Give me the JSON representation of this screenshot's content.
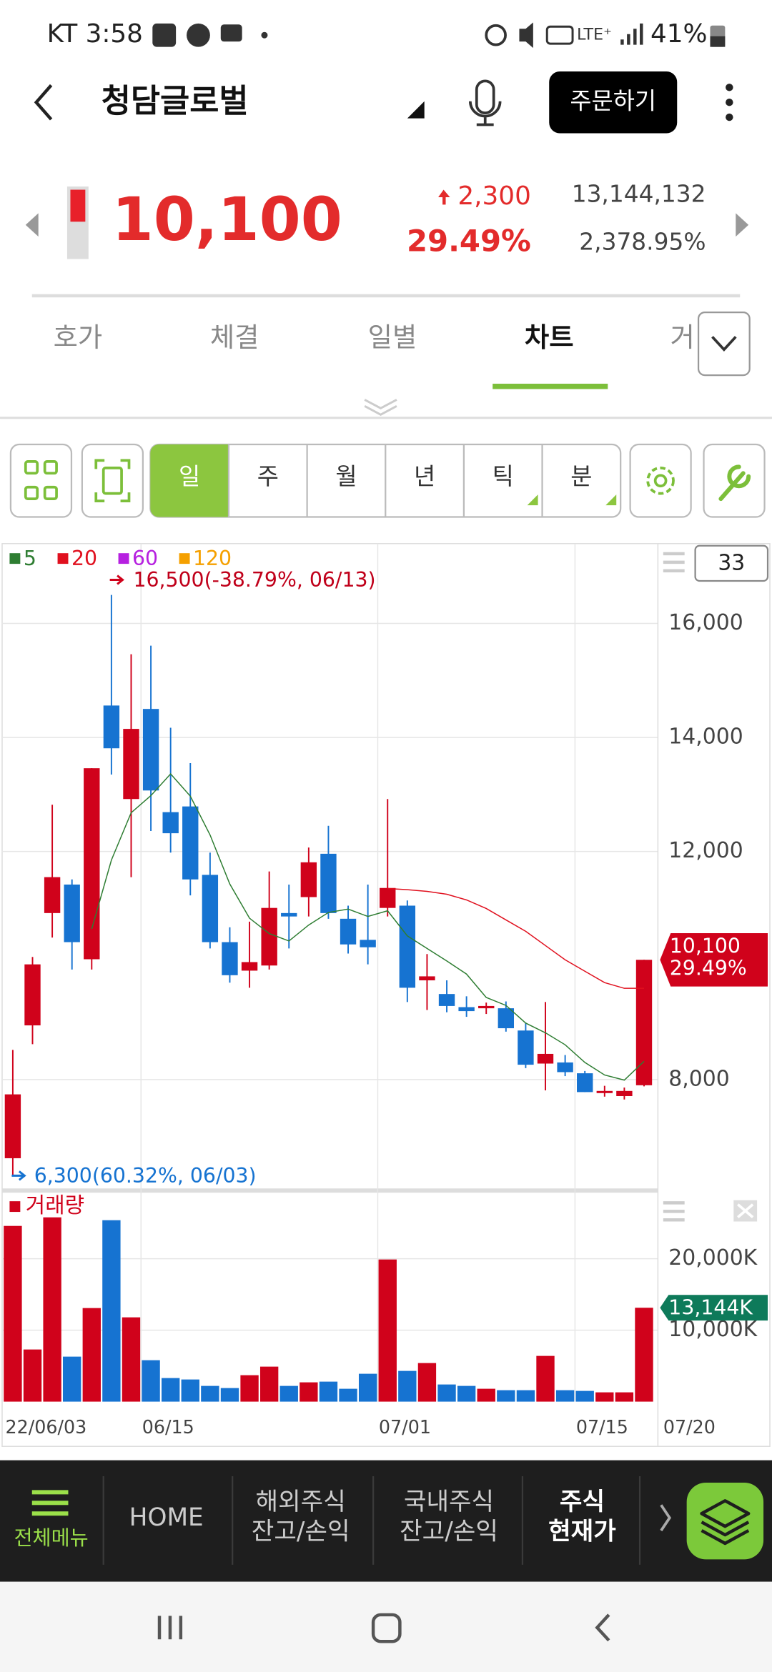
{
  "status_bar": {
    "carrier_time": "KT 3:58",
    "battery": "41%"
  },
  "header": {
    "title": "청담글로벌",
    "order_button": "주문하기"
  },
  "quote": {
    "price": "10,100",
    "change": "2,300",
    "change_rate": "29.49%",
    "volume": "13,144,132",
    "volume_rate": "2,378.95%"
  },
  "tabs": [
    "호가",
    "체결",
    "일별",
    "차트",
    "거"
  ],
  "periods": [
    "일",
    "주",
    "월",
    "년",
    "틱",
    "분"
  ],
  "chart_data": {
    "type": "candlestick",
    "candle_count": 33,
    "categories": [
      "22/06/03",
      null,
      null,
      null,
      null,
      null,
      null,
      "06/15",
      null,
      null,
      null,
      null,
      null,
      null,
      null,
      null,
      null,
      null,
      null,
      "07/01",
      null,
      null,
      null,
      null,
      null,
      null,
      null,
      null,
      null,
      "07/15",
      null,
      null,
      "07/20"
    ],
    "open": [
      6620,
      8950,
      10920,
      11420,
      10110,
      14560,
      12920,
      14500,
      12690,
      12790,
      11590,
      10410,
      9910,
      10000,
      10920,
      11200,
      11960,
      10820,
      10450,
      11010,
      11050,
      9740,
      9500,
      9270,
      9250,
      9250,
      8860,
      8280,
      8300,
      8110,
      7780,
      7710,
      7900
    ],
    "high": [
      8520,
      10150,
      12820,
      11510,
      13460,
      16500,
      15460,
      15610,
      14170,
      13550,
      11980,
      10670,
      10770,
      11650,
      11420,
      12070,
      12450,
      11050,
      11420,
      12920,
      11140,
      10200,
      9740,
      9460,
      9350,
      9370,
      9000,
      9360,
      8430,
      8150,
      7890,
      7860,
      10100
    ],
    "low": [
      6300,
      8620,
      10490,
      9930,
      9930,
      13350,
      11550,
      12360,
      11980,
      11230,
      10300,
      9700,
      9610,
      9930,
      10300,
      10860,
      10820,
      10210,
      10020,
      10860,
      9360,
      9220,
      9180,
      9100,
      9150,
      8840,
      8200,
      7810,
      8060,
      7780,
      7700,
      7650,
      7880
    ],
    "close": [
      7740,
      10020,
      11550,
      10410,
      13460,
      13810,
      14150,
      13070,
      12320,
      11510,
      10410,
      9830,
      10060,
      11010,
      10860,
      11810,
      10920,
      10370,
      10320,
      11360,
      9610,
      9810,
      9290,
      9200,
      9290,
      8900,
      8260,
      8450,
      8130,
      7780,
      7800,
      7800,
      10100
    ],
    "up_color": "#d0021b",
    "down_color": "#1673d1",
    "series": [
      {
        "name": "5",
        "color": "#2e7d32",
        "values": [
          null,
          null,
          null,
          null,
          10640,
          11850,
          12680,
          12980,
          13360,
          12970,
          12290,
          11430,
          10830,
          10560,
          10430,
          10710,
          10930,
          10990,
          10860,
          10960,
          10520,
          10300,
          10080,
          9850,
          9440,
          9300,
          8990,
          8820,
          8610,
          8300,
          8080,
          7990,
          8320
        ]
      },
      {
        "name": "20",
        "color": "#e0101e",
        "values": [
          null,
          null,
          null,
          null,
          null,
          null,
          null,
          null,
          null,
          null,
          null,
          null,
          null,
          null,
          null,
          null,
          null,
          null,
          null,
          11350,
          11330,
          11300,
          11250,
          11150,
          11000,
          10800,
          10600,
          10350,
          10100,
          9900,
          9700,
          9600,
          9600
        ]
      },
      {
        "name": "60",
        "color": "#b620e0",
        "values": [
          null,
          null,
          null,
          null,
          null,
          null,
          null,
          null,
          null,
          null,
          null,
          null,
          null,
          null,
          null,
          null,
          null,
          null,
          null,
          null,
          null,
          null,
          null,
          null,
          null,
          null,
          null,
          null,
          null,
          null,
          null,
          null,
          null
        ]
      },
      {
        "name": "120",
        "color": "#f5a000",
        "values": [
          null,
          null,
          null,
          null,
          null,
          null,
          null,
          null,
          null,
          null,
          null,
          null,
          null,
          null,
          null,
          null,
          null,
          null,
          null,
          null,
          null,
          null,
          null,
          null,
          null,
          null,
          null,
          null,
          null,
          null,
          null,
          null,
          null
        ]
      }
    ],
    "ylim": [
      6090,
      17400
    ],
    "yticks": [
      {
        "value": 8000,
        "label": "8,000"
      },
      {
        "value": 12000,
        "label": "12,000"
      },
      {
        "value": 14000,
        "label": "14,000"
      },
      {
        "value": 16000,
        "label": "16,000"
      }
    ],
    "grid": true,
    "annotations": {
      "high": "16,500(-38.79%, 06/13)",
      "low": "6,300(60.32%, 06/03)"
    },
    "last_tag": {
      "price": "10,100",
      "rate": "29.49%"
    },
    "volume": {
      "title": "거래량",
      "values": [
        24600,
        7300,
        25800,
        6300,
        13100,
        25400,
        11800,
        5800,
        3300,
        3100,
        2200,
        1900,
        3700,
        4900,
        2200,
        2700,
        2800,
        1800,
        3900,
        19900,
        4300,
        5400,
        2400,
        2200,
        1800,
        1600,
        1600,
        6400,
        1600,
        1500,
        1300,
        1300,
        13144
      ],
      "ylim": [
        0,
        29100
      ],
      "yticks": [
        {
          "value": 10000,
          "label": "10,000K"
        },
        {
          "value": 20000,
          "label": "20,000K"
        }
      ],
      "last_label": "13,144K"
    }
  },
  "bottom_nav": {
    "menu": "전체메뉴",
    "items": [
      [
        "HOME"
      ],
      [
        "해외주식",
        "잔고/손익"
      ],
      [
        "국내주식",
        "잔고/손익"
      ],
      [
        "주식",
        "현재가"
      ]
    ]
  }
}
